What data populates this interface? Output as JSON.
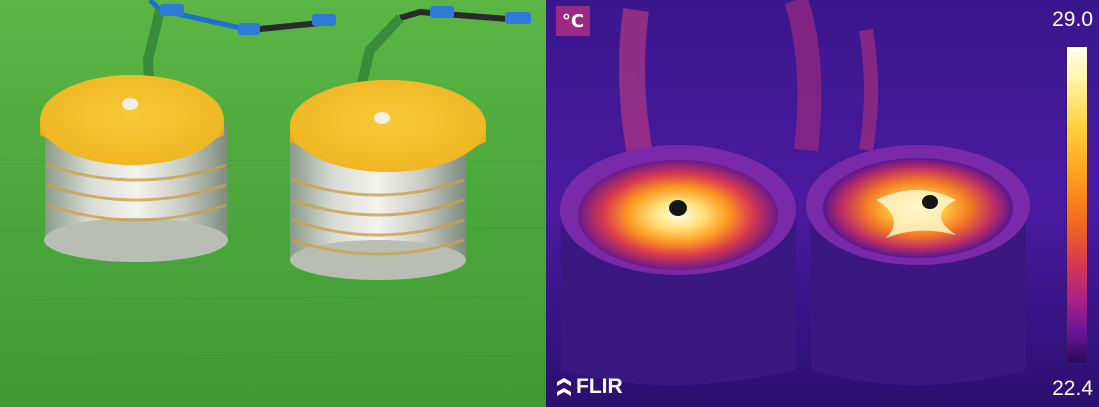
{
  "photo": {
    "description_icons": [
      "left-cylinder-icon",
      "right-cylinder-icon"
    ]
  },
  "thermal": {
    "unit": "°C",
    "scale_max": "29.0",
    "scale_min": "22.4",
    "logo_text": "FLIR"
  },
  "colors": {
    "green_background": "#4aa83a",
    "yellow_cap": "#f5c12a",
    "thermal_background": "#1d0a4f"
  }
}
